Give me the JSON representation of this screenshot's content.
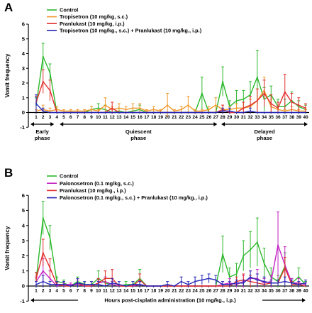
{
  "chart_data": [
    {
      "panel": "A",
      "type": "line",
      "ylabel": "Vomit frequency",
      "ylim": [
        -1,
        6
      ],
      "yticks": [
        "-1",
        "0",
        "1",
        "2",
        "3",
        "4",
        "5",
        "6"
      ],
      "x": [
        "1",
        "2",
        "3",
        "4",
        "5",
        "6",
        "7",
        "8",
        "9",
        "10",
        "11",
        "12",
        "13",
        "14",
        "15",
        "16",
        "17",
        "18",
        "19",
        "20",
        "21",
        "22",
        "23",
        "24",
        "25",
        "26",
        "27",
        "28",
        "29",
        "30",
        "31",
        "32",
        "33",
        "34",
        "35",
        "36",
        "37",
        "38",
        "39",
        "40"
      ],
      "legend": "top-left",
      "phases": [
        {
          "label1": "Early",
          "label2": "phase",
          "from": "1",
          "to": "4"
        },
        {
          "label1": "Quiescent",
          "label2": "phase",
          "from": "4",
          "to": "27"
        },
        {
          "label1": "Delayed",
          "label2": "phase",
          "from": "28",
          "to": "40"
        }
      ],
      "series": [
        {
          "name": "Control",
          "color": "#2db82d",
          "values": [
            0.5,
            3.8,
            2.7,
            0,
            0,
            0,
            0,
            0,
            0.2,
            0.3,
            0.2,
            0,
            0.1,
            0,
            0.1,
            0.2,
            0,
            0,
            0,
            0,
            0,
            0,
            0,
            0,
            1.3,
            0,
            0,
            2.1,
            0.4,
            0.8,
            0.9,
            1.2,
            2.4,
            0.9,
            1.2,
            0.4,
            0.4,
            0.8,
            0.4,
            0.2
          ],
          "errors": [
            0.5,
            0.9,
            0.6,
            0,
            0,
            0,
            0,
            0,
            0.2,
            0.3,
            0.3,
            0,
            0.2,
            0,
            0.2,
            0.3,
            0,
            0,
            0,
            0,
            0,
            0,
            0,
            0,
            1.1,
            0,
            0,
            1.0,
            0.4,
            0.7,
            0.6,
            0.9,
            1.8,
            0.8,
            0.6,
            0.5,
            0.5,
            0.6,
            0.4,
            0.3
          ]
        },
        {
          "name": "Tropisetron (10 mg/kg, s.c.)",
          "color": "#f09a2c",
          "values": [
            0.1,
            0.2,
            0.1,
            0.2,
            0.1,
            0.1,
            0.1,
            0.1,
            0.2,
            0.1,
            0.5,
            0.2,
            0.3,
            0.2,
            0.3,
            0.3,
            0.1,
            0.2,
            0.1,
            0.5,
            0.1,
            0.2,
            0.5,
            0.1,
            0.1,
            0.2,
            0.5,
            0.2,
            0.2,
            0.3,
            0.3,
            0.4,
            0.8,
            1.5,
            0.4,
            0.2,
            0.1,
            0.2,
            0.1,
            0.1
          ],
          "errors": [
            0.1,
            0.3,
            0.2,
            0.2,
            0.1,
            0.1,
            0.1,
            0.1,
            0.2,
            0.1,
            0.5,
            0.2,
            0.3,
            0.2,
            0.3,
            0.3,
            0.1,
            0.2,
            0.1,
            0.8,
            0.1,
            0.2,
            0.6,
            0.1,
            0.1,
            0.2,
            0.5,
            0.3,
            0.2,
            0.3,
            0.4,
            0.5,
            0.8,
            0.9,
            0.5,
            0.2,
            0.1,
            0.2,
            0.1,
            0.1
          ]
        },
        {
          "name": "Pranlukast (10 mg/kg, i.p.)",
          "color": "#e23030",
          "values": [
            0.7,
            2.1,
            1.5,
            0,
            0,
            0,
            0,
            0,
            0,
            0,
            0,
            0.3,
            0,
            0,
            0,
            0,
            0,
            0,
            0,
            0,
            0,
            0,
            0,
            0,
            0,
            0,
            0,
            0.2,
            0,
            0,
            0.3,
            0.5,
            0.8,
            1.3,
            0.6,
            0.3,
            1.4,
            0.7,
            0.5,
            0.3
          ],
          "errors": [
            0.4,
            0.8,
            0.7,
            0,
            0,
            0,
            0,
            0,
            0,
            0,
            0,
            0.4,
            0,
            0,
            0,
            0,
            0,
            0,
            0,
            0,
            0,
            0,
            0,
            0,
            0,
            0,
            0,
            0.3,
            0,
            0,
            0.4,
            0.6,
            0.8,
            0.9,
            0.6,
            0.4,
            1.2,
            0.6,
            0.5,
            0.3
          ]
        },
        {
          "name": "Tropisetron (10 mg/kg., s.c.) + Pranlukast (10 mg/kg., i.p.)",
          "color": "#2727b8",
          "values": [
            0.6,
            0.1,
            0,
            0,
            0,
            0,
            0,
            0,
            0,
            0,
            0,
            0,
            0,
            0,
            0,
            0,
            0,
            0,
            0,
            0,
            0,
            0,
            0,
            0,
            0,
            0,
            0,
            0.1,
            0.1,
            0,
            0,
            0.1,
            0,
            0,
            0,
            0,
            0,
            0,
            0,
            0
          ],
          "errors": [
            0.6,
            0.2,
            0,
            0,
            0,
            0,
            0,
            0,
            0,
            0,
            0,
            0,
            0,
            0,
            0,
            0,
            0,
            0,
            0,
            0,
            0,
            0,
            0,
            0,
            0,
            0,
            0,
            0.2,
            0.2,
            0,
            0,
            0.2,
            0,
            0,
            0,
            0,
            0,
            0,
            0,
            0
          ]
        }
      ]
    },
    {
      "panel": "B",
      "type": "line",
      "ylabel": "Vomit frequency",
      "xlabel": "Hours post-cisplatin administration (10 mg/kg., i.p.)",
      "ylim": [
        -1,
        6
      ],
      "yticks": [
        "-1",
        "0",
        "1",
        "2",
        "3",
        "4",
        "5",
        "6"
      ],
      "x": [
        "1",
        "2",
        "3",
        "4",
        "5",
        "6",
        "7",
        "8",
        "9",
        "10",
        "11",
        "12",
        "13",
        "14",
        "15",
        "16",
        "17",
        "18",
        "19",
        "20",
        "21",
        "22",
        "23",
        "24",
        "25",
        "26",
        "27",
        "28",
        "29",
        "30",
        "31",
        "32",
        "33",
        "34",
        "35",
        "36",
        "37",
        "38",
        "39",
        "40"
      ],
      "legend": "top-left",
      "series": [
        {
          "name": "Control",
          "color": "#2db82d",
          "values": [
            0.4,
            4.5,
            3.2,
            0.3,
            0.2,
            0,
            0.3,
            0.1,
            0.1,
            0.5,
            0.2,
            0.1,
            0,
            0.1,
            0.1,
            0.5,
            0,
            0,
            0,
            0,
            0,
            0,
            0,
            0,
            0,
            0,
            0,
            2.1,
            0.6,
            0.8,
            2.0,
            2.4,
            2.9,
            1.5,
            0.6,
            0.3,
            1.3,
            0.2,
            0.6,
            0.1
          ],
          "errors": [
            0.5,
            1.1,
            0.8,
            0.3,
            0.2,
            0,
            0.3,
            0.1,
            0.2,
            0.5,
            0.3,
            0.2,
            0,
            0.2,
            0.2,
            0.6,
            0,
            0,
            0,
            0,
            0,
            0,
            0,
            0,
            0,
            0,
            0,
            1.2,
            0.6,
            0.7,
            1.0,
            1.2,
            1.6,
            1.0,
            0.6,
            0.4,
            0.9,
            0.3,
            0.6,
            0.2
          ]
        },
        {
          "name": "Palonosetron (0.1 mg/kg, s.c.)",
          "color": "#c322c3",
          "values": [
            0.3,
            1.0,
            0.5,
            0,
            0.1,
            0.1,
            0.1,
            0,
            0,
            0.2,
            0.3,
            0.1,
            0,
            0,
            0,
            0.1,
            0,
            0,
            0,
            0,
            0,
            0,
            0,
            0,
            0,
            0,
            0,
            0.1,
            0.2,
            0.1,
            0.3,
            0.5,
            0.5,
            0.2,
            0.3,
            2.7,
            1.4,
            0.2,
            0.2,
            0.1
          ],
          "errors": [
            0.3,
            0.8,
            0.5,
            0,
            0.1,
            0.1,
            0.1,
            0,
            0,
            0.2,
            0.3,
            0.2,
            0,
            0,
            0,
            0.2,
            0,
            0,
            0,
            0,
            0,
            0,
            0,
            0,
            0,
            0,
            0,
            0.2,
            0.3,
            0.2,
            0.4,
            0.5,
            0.6,
            0.3,
            0.4,
            2.2,
            1.2,
            0.3,
            0.3,
            0.1
          ]
        },
        {
          "name": "Pranlukast (10 mg/kg., i.p.)",
          "color": "#e23030",
          "values": [
            0.5,
            2.2,
            1.2,
            0.1,
            0,
            0,
            0.2,
            0,
            0,
            0.2,
            0.5,
            0.5,
            0,
            0,
            0,
            0.4,
            0,
            0,
            0,
            0,
            0,
            0,
            0,
            0,
            0,
            0,
            0,
            0,
            0,
            0.3,
            0.4,
            0.3,
            0.2,
            0.1,
            0.2,
            0.2,
            1.2,
            0.1,
            0.1,
            0
          ],
          "errors": [
            0.4,
            0.9,
            0.6,
            0.1,
            0,
            0,
            0.2,
            0,
            0,
            0.3,
            0.5,
            0.6,
            0,
            0,
            0,
            0.4,
            0,
            0,
            0,
            0,
            0,
            0,
            0,
            0,
            0,
            0,
            0,
            0,
            0,
            0.3,
            0.4,
            0.4,
            0.2,
            0.2,
            0.2,
            0.2,
            0.7,
            0.2,
            0.1,
            0
          ]
        },
        {
          "name": "Palonosetron (0.1 mg/kg., s.c.) + Pranlukast (10 mg/kg., i.p.)",
          "color": "#2727b8",
          "values": [
            0.1,
            0.3,
            0.1,
            0.1,
            0.1,
            0,
            0.2,
            0.1,
            0.1,
            0.1,
            0,
            0.2,
            0.1,
            0,
            0.1,
            0.1,
            0,
            0,
            0,
            0.1,
            0,
            0.3,
            0.1,
            0.3,
            0.4,
            0.5,
            0.4,
            0.1,
            0.1,
            0.2,
            0.2,
            0.6,
            0.4,
            0.3,
            0.2,
            0.2,
            0.3,
            0.2,
            0.1,
            0.2
          ],
          "errors": [
            0.2,
            0.4,
            0.2,
            0.2,
            0.2,
            0,
            0.3,
            0.2,
            0.2,
            0.2,
            0,
            0.3,
            0.2,
            0,
            0.2,
            0.2,
            0,
            0,
            0,
            0.2,
            0,
            0.3,
            0.2,
            0.3,
            0.3,
            0.3,
            0.3,
            0.2,
            0.2,
            0.2,
            0.2,
            0.4,
            0.4,
            0.3,
            0.2,
            0.2,
            0.3,
            0.2,
            0.2,
            0.2
          ]
        }
      ]
    }
  ]
}
